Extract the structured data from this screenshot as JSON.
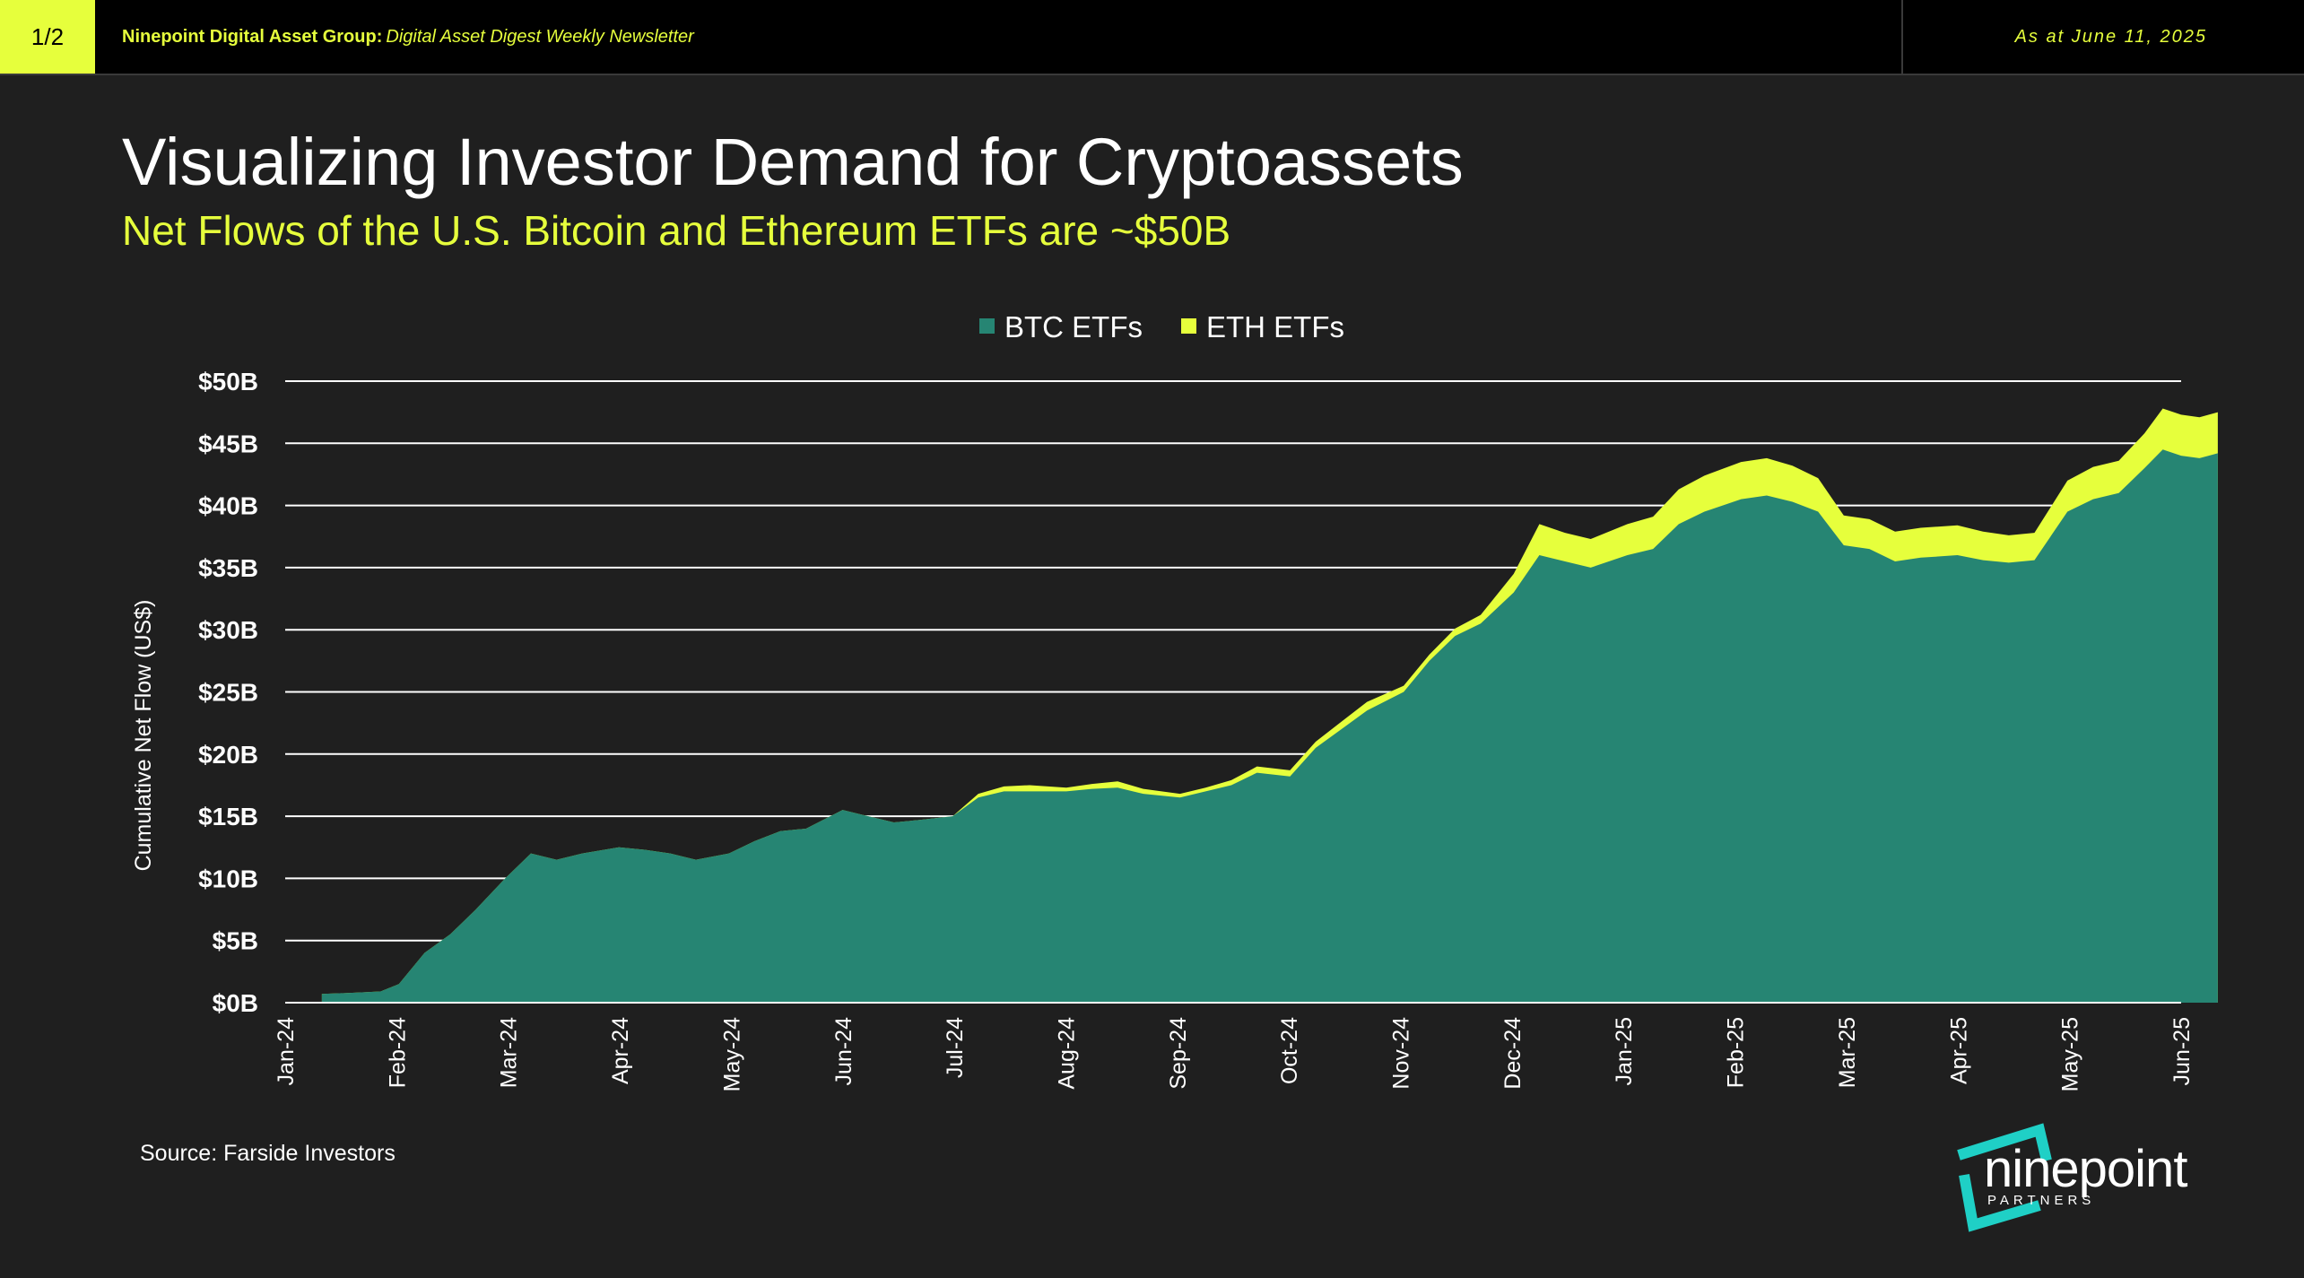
{
  "header": {
    "page_indicator": "1/2",
    "brand": "Ninepoint Digital Asset Group:",
    "newsletter": "Digital Asset Digest Weekly Newsletter",
    "as_at": "As at June 11, 2025"
  },
  "title": "Visualizing Investor Demand for Cryptoassets",
  "subtitle": "Net Flows of the U.S. Bitcoin and Ethereum ETFs are ~$50B",
  "source": "Source: Farside Investors",
  "logo": {
    "word": "ninepoint",
    "sub": "PARTNERS",
    "icon": "ninepoint-logo-icon"
  },
  "colors": {
    "background": "#1f1f1f",
    "accent": "#e6ff3c",
    "btc": "#268573",
    "eth": "#e6ff3c",
    "logo_teal": "#1fd0c6"
  },
  "chart_data": {
    "type": "area",
    "stacked": true,
    "ylabel": "Cumulative Net Flow (US$)",
    "xlabel": "",
    "ylim": [
      0,
      50
    ],
    "yticks": [
      "$0B",
      "$5B",
      "$10B",
      "$15B",
      "$20B",
      "$25B",
      "$30B",
      "$35B",
      "$40B",
      "$45B",
      "$50B"
    ],
    "xticks": [
      "Jan-24",
      "Feb-24",
      "Mar-24",
      "Apr-24",
      "May-24",
      "Jun-24",
      "Jul-24",
      "Aug-24",
      "Sep-24",
      "Oct-24",
      "Nov-24",
      "Dec-24",
      "Jan-25",
      "Feb-25",
      "Mar-25",
      "Apr-25",
      "May-25",
      "Jun-25"
    ],
    "legend": "top-center",
    "grid": "horizontal",
    "x": [
      "2024-01-11",
      "2024-01-20",
      "2024-01-27",
      "2024-02-01",
      "2024-02-08",
      "2024-02-15",
      "2024-02-22",
      "2024-03-01",
      "2024-03-08",
      "2024-03-15",
      "2024-03-22",
      "2024-04-01",
      "2024-04-08",
      "2024-04-15",
      "2024-04-22",
      "2024-05-01",
      "2024-05-08",
      "2024-05-15",
      "2024-05-22",
      "2024-06-01",
      "2024-06-08",
      "2024-06-15",
      "2024-06-22",
      "2024-07-01",
      "2024-07-08",
      "2024-07-15",
      "2024-07-22",
      "2024-08-01",
      "2024-08-08",
      "2024-08-15",
      "2024-08-22",
      "2024-09-01",
      "2024-09-08",
      "2024-09-15",
      "2024-09-22",
      "2024-10-01",
      "2024-10-08",
      "2024-10-15",
      "2024-10-22",
      "2024-11-01",
      "2024-11-08",
      "2024-11-15",
      "2024-11-22",
      "2024-12-01",
      "2024-12-08",
      "2024-12-15",
      "2024-12-22",
      "2025-01-01",
      "2025-01-08",
      "2025-01-15",
      "2025-01-22",
      "2025-02-01",
      "2025-02-08",
      "2025-02-15",
      "2025-02-22",
      "2025-03-01",
      "2025-03-08",
      "2025-03-15",
      "2025-03-22",
      "2025-04-01",
      "2025-04-08",
      "2025-04-15",
      "2025-04-22",
      "2025-05-01",
      "2025-05-08",
      "2025-05-15",
      "2025-05-22",
      "2025-05-27",
      "2025-06-01",
      "2025-06-06",
      "2025-06-11"
    ],
    "series": [
      {
        "name": "BTC ETFs",
        "color": "#268573",
        "values": [
          0.7,
          0.8,
          0.9,
          1.5,
          4.0,
          5.5,
          7.5,
          10.0,
          12.0,
          11.5,
          12.0,
          12.5,
          12.3,
          12.0,
          11.5,
          12.0,
          13.0,
          13.8,
          14.0,
          15.5,
          15.0,
          14.5,
          14.7,
          15.0,
          16.5,
          17.0,
          17.0,
          17.0,
          17.2,
          17.3,
          16.8,
          16.5,
          17.0,
          17.5,
          18.5,
          18.2,
          20.5,
          22.0,
          23.5,
          25.0,
          27.5,
          29.5,
          30.5,
          33.0,
          36.0,
          35.5,
          35.0,
          36.0,
          36.5,
          38.5,
          39.5,
          40.5,
          40.8,
          40.3,
          39.5,
          36.8,
          36.5,
          35.5,
          35.8,
          36.0,
          35.6,
          35.4,
          35.6,
          39.5,
          40.5,
          41.0,
          43.0,
          44.5,
          44.0,
          43.8,
          44.2
        ]
      },
      {
        "name": "ETH ETFs",
        "color": "#e6ff3c",
        "values": [
          0,
          0,
          0,
          0,
          0,
          0,
          0,
          0,
          0,
          0,
          0,
          0,
          0,
          0,
          0,
          0,
          0,
          0,
          0,
          0,
          0,
          0,
          0,
          0,
          0.3,
          0.4,
          0.5,
          0.3,
          0.4,
          0.5,
          0.4,
          0.3,
          0.3,
          0.4,
          0.5,
          0.5,
          0.5,
          0.6,
          0.7,
          0.5,
          0.5,
          0.6,
          0.7,
          1.5,
          2.5,
          2.3,
          2.3,
          2.5,
          2.6,
          2.8,
          2.9,
          3.0,
          3.0,
          2.9,
          2.7,
          2.4,
          2.4,
          2.4,
          2.4,
          2.4,
          2.3,
          2.2,
          2.2,
          2.5,
          2.6,
          2.6,
          2.8,
          3.3,
          3.3,
          3.3,
          3.3
        ]
      }
    ]
  }
}
